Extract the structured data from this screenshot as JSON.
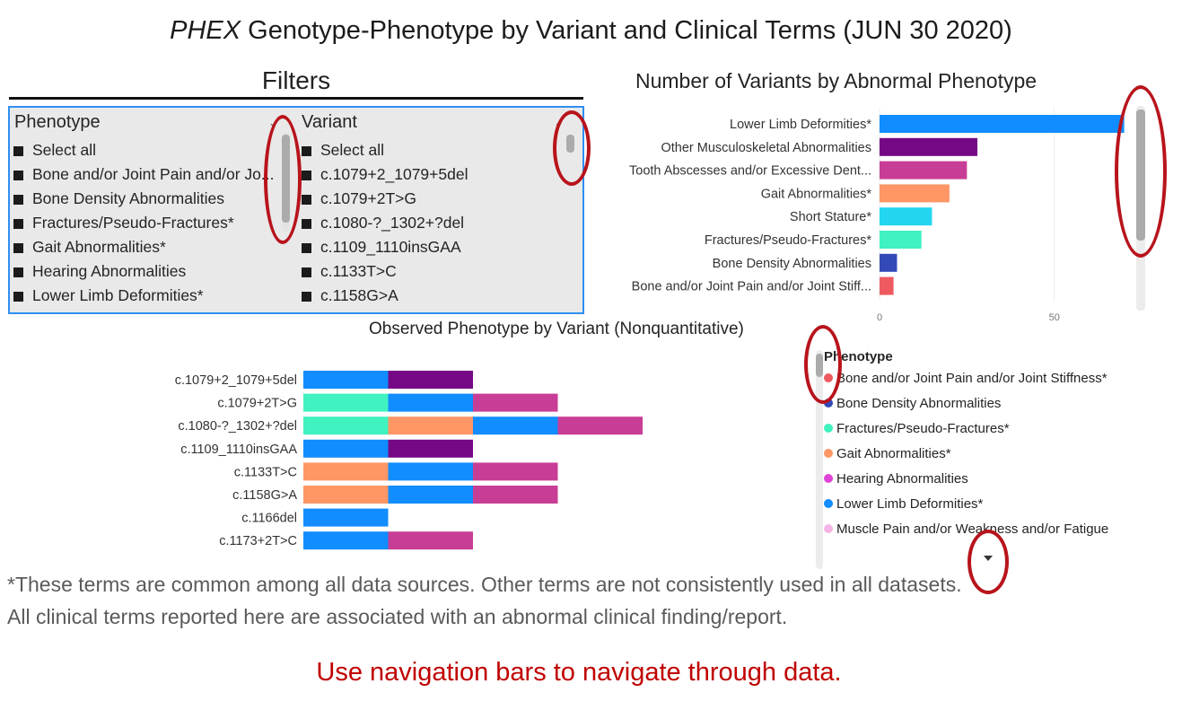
{
  "header": {
    "title_gene": "PHEX",
    "title_rest": " Genotype-Phenotype by Variant and Clinical Terms (JUN 30 2020)"
  },
  "filters": {
    "title": "Filters",
    "phenotype_slicer": {
      "header": "Phenotype",
      "items": [
        "Select all",
        "Bone and/or Joint Pain and/or Jo...",
        "Bone Density Abnormalities",
        "Fractures/Pseudo-Fractures*",
        "Gait Abnormalities*",
        "Hearing Abnormalities",
        "Lower Limb Deformities*"
      ]
    },
    "variant_slicer": {
      "header": "Variant",
      "items": [
        "Select all",
        "c.1079+2_1079+5del",
        "c.1079+2T>G",
        "c.1080-?_1302+?del",
        "c.1109_1110insGAA",
        "c.1133T>C",
        "c.1158G>A"
      ]
    }
  },
  "chart_data": [
    {
      "type": "bar",
      "orientation": "horizontal",
      "title": "Number of Variants by Abnormal Phenotype",
      "categories": [
        "Lower Limb Deformities*",
        "Other Musculoskeletal Abnormalities",
        "Tooth Abscesses and/or Excessive Dent...",
        "Gait Abnormalities*",
        "Short Stature*",
        "Fractures/Pseudo-Fractures*",
        "Bone Density Abnormalities",
        "Bone and/or Joint Pain and/or Joint Stiff..."
      ],
      "values": [
        70,
        28,
        25,
        20,
        15,
        12,
        5,
        4
      ],
      "colors": [
        "#118dff",
        "#750985",
        "#c83d95",
        "#fe9666",
        "#24d5ef",
        "#3ff2c0",
        "#3349b8",
        "#ee5a5f"
      ],
      "x_ticks": [
        "0",
        "50"
      ],
      "xlim": [
        0,
        85
      ],
      "grid": true
    },
    {
      "type": "bar",
      "orientation": "horizontal",
      "stacked": true,
      "title": "Observed Phenotype by Variant (Nonquantitative)",
      "categories": [
        "c.1079+2_1079+5del",
        "c.1079+2T>G",
        "c.1080-?_1302+?del",
        "c.1109_1110insGAA",
        "c.1133T>C",
        "c.1158G>A",
        "c.1166del",
        "c.1173+2T>C"
      ],
      "segments": [
        [
          "Lower Limb Deformities*",
          "Other Musculoskeletal Abnormalities"
        ],
        [
          "Fractures/Pseudo-Fractures*",
          "Lower Limb Deformities*",
          "Tooth Abscesses and/or Excessive Dent..."
        ],
        [
          "Fractures/Pseudo-Fractures*",
          "Gait Abnormalities*",
          "Lower Limb Deformities*",
          "Tooth Abscesses and/or Excessive Dent..."
        ],
        [
          "Lower Limb Deformities*",
          "Other Musculoskeletal Abnormalities"
        ],
        [
          "Gait Abnormalities*",
          "Lower Limb Deformities*",
          "Tooth Abscesses and/or Excessive Dent..."
        ],
        [
          "Gait Abnormalities*",
          "Lower Limb Deformities*",
          "Tooth Abscesses and/or Excessive Dent..."
        ],
        [
          "Lower Limb Deformities*"
        ],
        [
          "Lower Limb Deformities*",
          "Tooth Abscesses and/or Excessive Dent..."
        ]
      ],
      "segment_colors": {
        "Lower Limb Deformities*": "#118dff",
        "Other Musculoskeletal Abnormalities": "#750985",
        "Tooth Abscesses and/or Excessive Dent...": "#c83d95",
        "Gait Abnormalities*": "#fe9666",
        "Fractures/Pseudo-Fractures*": "#3ff2c0"
      },
      "legend": {
        "title": "Phenotype",
        "items": [
          {
            "label": "Bone and/or Joint Pain and/or Joint Stiffness*",
            "color": "#ee5a5f"
          },
          {
            "label": "Bone Density Abnormalities",
            "color": "#3349b8"
          },
          {
            "label": "Fractures/Pseudo-Fractures*",
            "color": "#3ff2c0"
          },
          {
            "label": "Gait Abnormalities*",
            "color": "#fe9666"
          },
          {
            "label": "Hearing Abnormalities",
            "color": "#e044d6"
          },
          {
            "label": "Lower Limb Deformities*",
            "color": "#118dff"
          },
          {
            "label": "Muscle Pain and/or Weakness and/or Fatigue",
            "color": "#f5b5e6"
          }
        ]
      }
    }
  ],
  "footnotes": {
    "line1": "*These terms are common among all data sources. Other terms are not consistently used in all datasets.",
    "line2": "All clinical terms reported here are associated with an abnormal clinical finding/report."
  },
  "navigation_note": "Use navigation bars to navigate through data.",
  "colors": {
    "annotation_red": "#b8141c",
    "note_red": "#c00000",
    "slicer_border": "#2f8ff0",
    "slicer_bg": "#e9e9e9"
  },
  "icons": {
    "slicer_dropdown": "chevron-down-icon",
    "legend_scroll": "caret-down-icon"
  }
}
